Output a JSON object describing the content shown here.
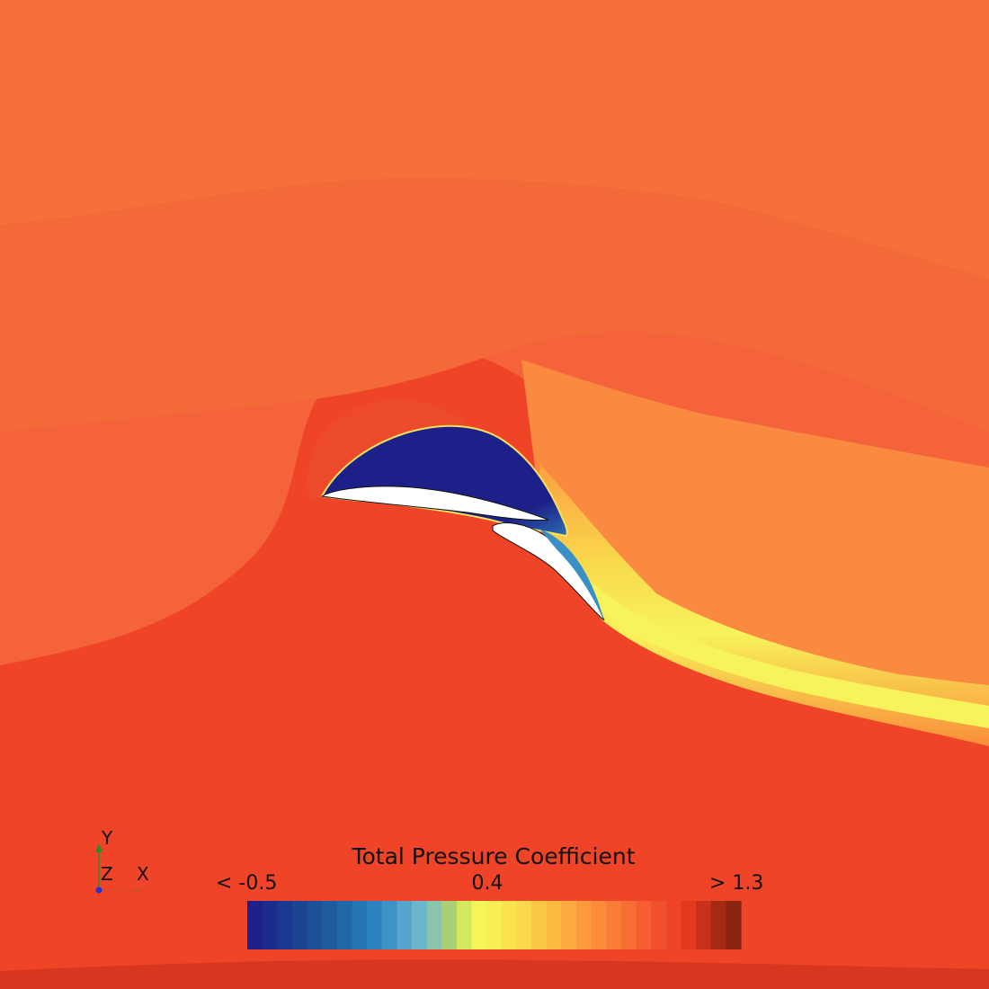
{
  "legend": {
    "title": "Total Pressure Coefficient",
    "min_label": "< -0.5",
    "mid_label": "0.4",
    "max_label": "> 1.3",
    "range": [
      -0.5,
      1.3
    ],
    "colors": [
      "#1e2089",
      "#1d2b8c",
      "#1c3790",
      "#1b4493",
      "#1d5097",
      "#1f5c9e",
      "#2168a6",
      "#2575b1",
      "#2b82be",
      "#3e93c6",
      "#55a5cc",
      "#6bb6cc",
      "#8ac4aa",
      "#aad076",
      "#d3e85c",
      "#f5f55a",
      "#f9ee55",
      "#fae34f",
      "#fbd74b",
      "#fcc947",
      "#fdba43",
      "#fdaa40",
      "#fd9a3d",
      "#fc8b3a",
      "#fa7c37",
      "#f76d34",
      "#f45e31",
      "#f1502d",
      "#ef4428",
      "#e5391f",
      "#c83019",
      "#a52a14",
      "#8b2410"
    ]
  },
  "axes": {
    "y": "Y",
    "z": "Z",
    "x": "X",
    "y_color": "#2e8b2e",
    "x_color": "#d84a2a",
    "origin_color": "#2233cc"
  },
  "field_colors": {
    "freestream_top": "#f6703a",
    "mid_band": "#f4633a",
    "lower": "#ef4428",
    "bottom_edge": "#d8371f",
    "suction": "#1e2089",
    "wake_core": "#f7ef5a",
    "wake_edge": "#fc9e42"
  }
}
